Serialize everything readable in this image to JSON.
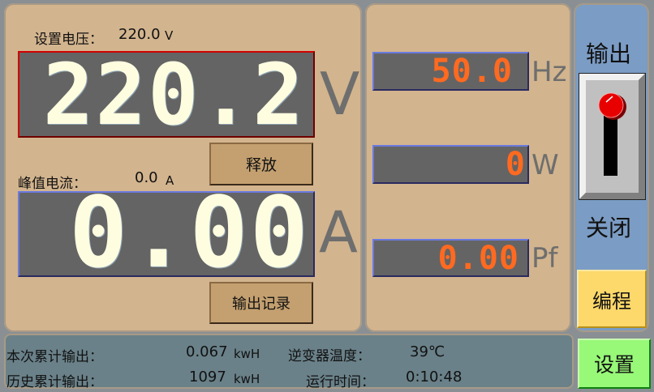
{
  "colors": {
    "lcd_bg": "#646464",
    "digit_main": "#fffde0",
    "digit_small": "#ff6a20",
    "panel_tan": "#d2b48e",
    "panel_blue": "#7b9cc4",
    "footer": "#6a8189",
    "release_btn": "#c4a070",
    "program_btn": "#fdd86a",
    "settings_btn": "#98f878",
    "knob": "#e00000"
  },
  "voltage": {
    "set_label": "设置电压：",
    "set_value": "220.0",
    "set_unit": "V",
    "reading": "220.2",
    "unit": "V"
  },
  "release_button": "释放",
  "current": {
    "peak_label": "峰值电流：",
    "peak_value": "0.0",
    "peak_unit": "A",
    "reading": "0.00",
    "unit": "A"
  },
  "output_record_button": "输出记录",
  "frequency": {
    "reading": "50.0",
    "unit": "Hz"
  },
  "power": {
    "reading": "0",
    "unit": "W"
  },
  "power_factor": {
    "reading": "0.00",
    "unit": "Pf"
  },
  "output": {
    "title": "输出",
    "switch_icon": "toggle-lever-icon",
    "state": "关闭"
  },
  "program_button": "编程",
  "settings_button": "设置",
  "footer": {
    "session_label": "本次累计输出：",
    "session_value": "0.067",
    "session_unit": "kwH",
    "history_label": "历史累计输出：",
    "history_value": "1097",
    "history_unit": "kwH",
    "temp_label": "逆变器温度：",
    "temp_value": "39℃",
    "runtime_label": "运行时间：",
    "runtime_value": "0:10:48"
  }
}
